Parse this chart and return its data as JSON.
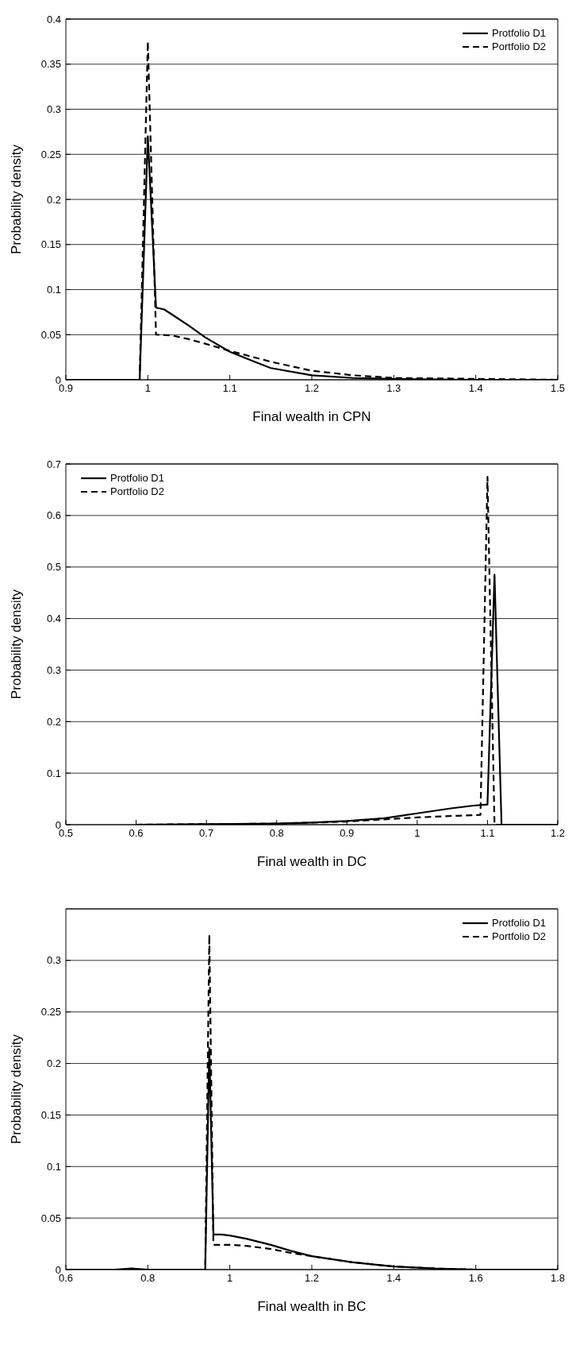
{
  "chart_data": [
    {
      "type": "line",
      "xlabel": "Final wealth in CPN",
      "ylabel": "Probability density",
      "xlim": [
        0.9,
        1.5
      ],
      "xticks": [
        0.9,
        1,
        1.1,
        1.2,
        1.3,
        1.4,
        1.5
      ],
      "ylim": [
        0,
        0.4
      ],
      "yticks": [
        0,
        0.05,
        0.1,
        0.15,
        0.2,
        0.25,
        0.3,
        0.35,
        0.4
      ],
      "grid": "y",
      "legend": "top right",
      "marker": "none",
      "series": [
        {
          "name": "Protfolio D1",
          "color": "#000000",
          "line_style": "solid",
          "x": [
            0.9,
            0.99,
            1.0,
            1.01,
            1.02,
            1.03,
            1.05,
            1.07,
            1.1,
            1.13,
            1.15,
            1.2,
            1.25,
            1.3,
            1.4,
            1.5
          ],
          "values": [
            0,
            0,
            0.27,
            0.08,
            0.078,
            0.072,
            0.06,
            0.047,
            0.031,
            0.02,
            0.013,
            0.005,
            0.002,
            0.001,
            0,
            0
          ]
        },
        {
          "name": "Portfolio D2",
          "color": "#000000",
          "line_style": "dashed",
          "x": [
            0.9,
            0.99,
            1.0,
            1.01,
            1.03,
            1.05,
            1.07,
            1.1,
            1.15,
            1.2,
            1.25,
            1.3,
            1.4,
            1.5
          ],
          "values": [
            0,
            0,
            0.375,
            0.05,
            0.049,
            0.045,
            0.04,
            0.032,
            0.02,
            0.01,
            0.005,
            0.002,
            0.001,
            0
          ]
        }
      ]
    },
    {
      "type": "line",
      "xlabel": "Final wealth in DC",
      "ylabel": "Probability density",
      "xlim": [
        0.5,
        1.2
      ],
      "xticks": [
        0.5,
        0.6,
        0.7,
        0.8,
        0.9,
        1,
        1.1,
        1.2
      ],
      "ylim": [
        0,
        0.7
      ],
      "yticks": [
        0,
        0.1,
        0.2,
        0.3,
        0.4,
        0.5,
        0.6,
        0.7
      ],
      "grid": "y",
      "legend": "top left",
      "marker": "none",
      "series": [
        {
          "name": "Protfolio D1",
          "color": "#000000",
          "line_style": "solid",
          "x": [
            0.6,
            0.7,
            0.8,
            0.85,
            0.9,
            0.95,
            1.0,
            1.05,
            1.08,
            1.1,
            1.11,
            1.12,
            1.2
          ],
          "values": [
            0,
            0.001,
            0.002,
            0.004,
            0.007,
            0.012,
            0.022,
            0.032,
            0.037,
            0.039,
            0.485,
            0,
            0
          ]
        },
        {
          "name": "Portfolio D2",
          "color": "#000000",
          "line_style": "dashed",
          "x": [
            0.6,
            0.7,
            0.8,
            0.9,
            0.95,
            1.0,
            1.05,
            1.09,
            1.1,
            1.11,
            1.2
          ],
          "values": [
            0,
            0.001,
            0.002,
            0.006,
            0.01,
            0.014,
            0.017,
            0.019,
            0.675,
            0,
            0
          ]
        }
      ]
    },
    {
      "type": "line",
      "xlabel": "Final wealth in BC",
      "ylabel": "Probability density",
      "xlim": [
        0.6,
        1.8
      ],
      "xticks": [
        0.6,
        0.8,
        1,
        1.2,
        1.4,
        1.6,
        1.8
      ],
      "ylim": [
        0,
        0.35
      ],
      "yticks": [
        0,
        0.05,
        0.1,
        0.15,
        0.2,
        0.25,
        0.3
      ],
      "grid": "y",
      "legend": "top right",
      "marker": "none",
      "series": [
        {
          "name": "Protfolio D1",
          "color": "#000000",
          "line_style": "solid",
          "x": [
            0.6,
            0.72,
            0.76,
            0.8,
            0.94,
            0.95,
            0.96,
            0.98,
            1.0,
            1.04,
            1.1,
            1.15,
            1.2,
            1.3,
            1.4,
            1.5,
            1.6,
            1.8
          ],
          "values": [
            0,
            0,
            0.001,
            0,
            0,
            0.215,
            0.034,
            0.034,
            0.033,
            0.03,
            0.024,
            0.018,
            0.013,
            0.007,
            0.003,
            0.001,
            0,
            0
          ]
        },
        {
          "name": "Portfolio D2",
          "color": "#000000",
          "line_style": "dashed",
          "x": [
            0.6,
            0.94,
            0.95,
            0.96,
            1.0,
            1.04,
            1.1,
            1.15,
            1.2,
            1.3,
            1.4,
            1.5,
            1.6,
            1.8
          ],
          "values": [
            0,
            0,
            0.325,
            0.024,
            0.024,
            0.023,
            0.02,
            0.016,
            0.013,
            0.007,
            0.003,
            0.001,
            0,
            0
          ]
        }
      ]
    }
  ]
}
